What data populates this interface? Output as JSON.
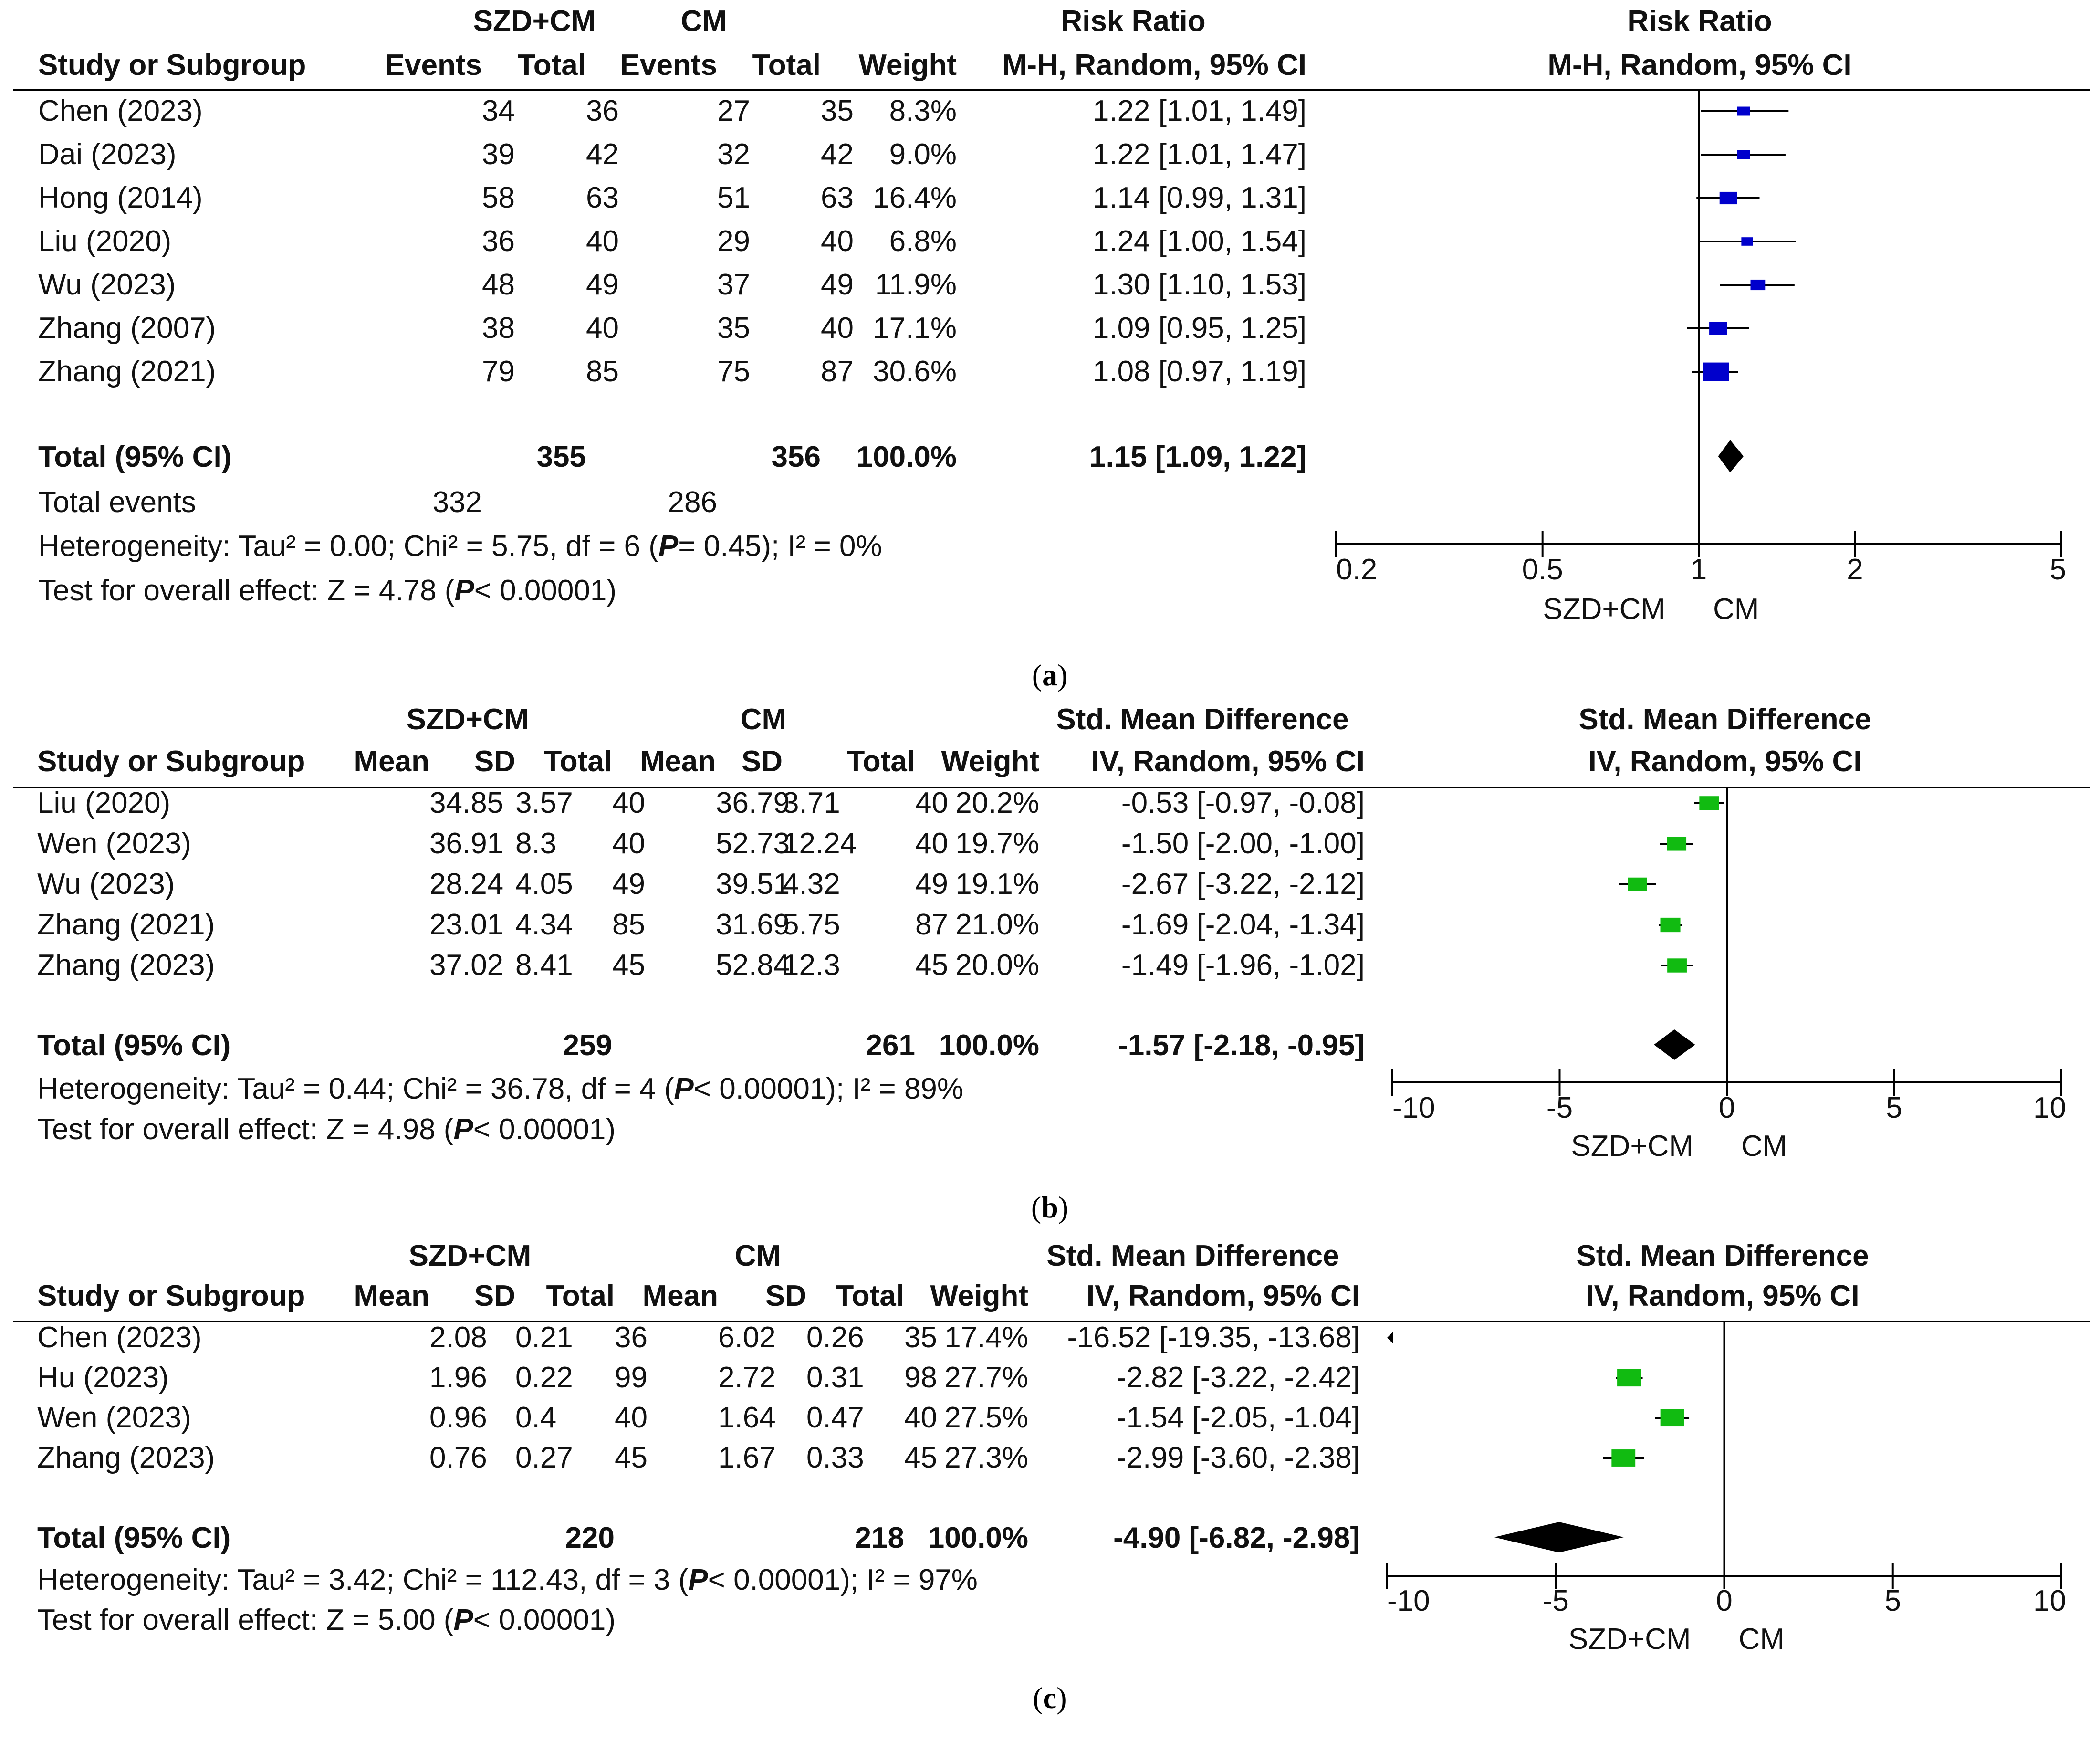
{
  "panels": [
    {
      "id": "a",
      "caption_letter": "a",
      "group_headers": {
        "exp": "SZD+CM",
        "ctl": "CM",
        "stat": "Risk Ratio",
        "plot": "Risk Ratio"
      },
      "columns": {
        "study": "Study or Subgroup",
        "exp": [
          "Events",
          "Total"
        ],
        "ctl": [
          "Events",
          "Total"
        ],
        "weight": "Weight",
        "stat": "M-H, Random, 95% CI",
        "plot": "M-H, Random, 95% CI"
      },
      "rows": [
        {
          "study": "Chen (2023)",
          "exp": [
            "34",
            "36"
          ],
          "ctl": [
            "27",
            "35"
          ],
          "weight": "8.3%",
          "ci_text": "1.22 [1.01, 1.49]"
        },
        {
          "study": "Dai (2023)",
          "exp": [
            "39",
            "42"
          ],
          "ctl": [
            "32",
            "42"
          ],
          "weight": "9.0%",
          "ci_text": "1.22 [1.01, 1.47]"
        },
        {
          "study": "Hong (2014)",
          "exp": [
            "58",
            "63"
          ],
          "ctl": [
            "51",
            "63"
          ],
          "weight": "16.4%",
          "ci_text": "1.14 [0.99, 1.31]"
        },
        {
          "study": "Liu (2020)",
          "exp": [
            "36",
            "40"
          ],
          "ctl": [
            "29",
            "40"
          ],
          "weight": "6.8%",
          "ci_text": "1.24 [1.00, 1.54]"
        },
        {
          "study": "Wu (2023)",
          "exp": [
            "48",
            "49"
          ],
          "ctl": [
            "37",
            "49"
          ],
          "weight": "11.9%",
          "ci_text": "1.30 [1.10, 1.53]"
        },
        {
          "study": "Zhang (2007)",
          "exp": [
            "38",
            "40"
          ],
          "ctl": [
            "35",
            "40"
          ],
          "weight": "17.1%",
          "ci_text": "1.09 [0.95, 1.25]"
        },
        {
          "study": "Zhang (2021)",
          "exp": [
            "79",
            "85"
          ],
          "ctl": [
            "75",
            "87"
          ],
          "weight": "30.6%",
          "ci_text": "1.08 [0.97, 1.19]"
        }
      ],
      "total": {
        "label": "Total (95% CI)",
        "exp": "355",
        "ctl": "356",
        "weight": "100.0%",
        "ci_text": "1.15 [1.09, 1.22]"
      },
      "total_events": {
        "label": "Total events",
        "exp": "332",
        "ctl": "286"
      },
      "heterogeneity": {
        "pre": "Heterogeneity: Tau² = 0.00; Chi² = 5.75, df = 6 (",
        "p": "P",
        "post": "= 0.45); I² = 0%"
      },
      "overall": {
        "pre": "Test for overall effect: Z = 4.78 (",
        "p": "P",
        "post": "< 0.00001)"
      },
      "axis": {
        "ticks": [
          "0.2",
          "0.5",
          "1",
          "2",
          "5"
        ],
        "favours_left": "SZD+CM",
        "favours_right": "CM"
      }
    },
    {
      "id": "b",
      "caption_letter": "b",
      "group_headers": {
        "exp": "SZD+CM",
        "ctl": "CM",
        "stat": "Std. Mean Difference",
        "plot": "Std. Mean Difference"
      },
      "columns": {
        "study": "Study or Subgroup",
        "exp": [
          "Mean",
          "SD",
          "Total"
        ],
        "ctl": [
          "Mean",
          "SD",
          "Total"
        ],
        "weight": "Weight",
        "stat": "IV, Random, 95% CI",
        "plot": "IV, Random, 95% CI"
      },
      "rows": [
        {
          "study": "Liu (2020)",
          "exp": [
            "34.85",
            "3.57",
            "40"
          ],
          "ctl": [
            "36.79",
            "3.71",
            "40"
          ],
          "weight": "20.2%",
          "ci_text": "-0.53 [-0.97, -0.08]"
        },
        {
          "study": "Wen (2023)",
          "exp": [
            "36.91",
            "8.3",
            "40"
          ],
          "ctl": [
            "52.73",
            "12.24",
            "40"
          ],
          "weight": "19.7%",
          "ci_text": "-1.50 [-2.00, -1.00]"
        },
        {
          "study": "Wu (2023)",
          "exp": [
            "28.24",
            "4.05",
            "49"
          ],
          "ctl": [
            "39.51",
            "4.32",
            "49"
          ],
          "weight": "19.1%",
          "ci_text": "-2.67 [-3.22, -2.12]"
        },
        {
          "study": "Zhang (2021)",
          "exp": [
            "23.01",
            "4.34",
            "85"
          ],
          "ctl": [
            "31.69",
            "5.75",
            "87"
          ],
          "weight": "21.0%",
          "ci_text": "-1.69 [-2.04, -1.34]"
        },
        {
          "study": "Zhang (2023)",
          "exp": [
            "37.02",
            "8.41",
            "45"
          ],
          "ctl": [
            "52.84",
            "12.3",
            "45"
          ],
          "weight": "20.0%",
          "ci_text": "-1.49 [-1.96, -1.02]"
        }
      ],
      "total": {
        "label": "Total (95% CI)",
        "exp": "259",
        "ctl": "261",
        "weight": "100.0%",
        "ci_text": "-1.57 [-2.18, -0.95]"
      },
      "heterogeneity": {
        "pre": "Heterogeneity: Tau² = 0.44; Chi² = 36.78, df = 4 (",
        "p": "P",
        "post": "< 0.00001); I² = 89%"
      },
      "overall": {
        "pre": "Test for overall effect: Z = 4.98 (",
        "p": "P",
        "post": "< 0.00001)"
      },
      "axis": {
        "ticks": [
          "-10",
          "-5",
          "0",
          "5",
          "10"
        ],
        "favours_left": "SZD+CM",
        "favours_right": "CM"
      }
    },
    {
      "id": "c",
      "caption_letter": "c",
      "group_headers": {
        "exp": "SZD+CM",
        "ctl": "CM",
        "stat": "Std. Mean Difference",
        "plot": "Std. Mean Difference"
      },
      "columns": {
        "study": "Study or Subgroup",
        "exp": [
          "Mean",
          "SD",
          "Total"
        ],
        "ctl": [
          "Mean",
          "SD",
          "Total"
        ],
        "weight": "Weight",
        "stat": "IV, Random, 95% CI",
        "plot": "IV, Random, 95% CI"
      },
      "rows": [
        {
          "study": "Chen (2023)",
          "exp": [
            "2.08",
            "0.21",
            "36"
          ],
          "ctl": [
            "6.02",
            "0.26",
            "35"
          ],
          "weight": "17.4%",
          "ci_text": "-16.52 [-19.35, -13.68]"
        },
        {
          "study": "Hu (2023)",
          "exp": [
            "1.96",
            "0.22",
            "99"
          ],
          "ctl": [
            "2.72",
            "0.31",
            "98"
          ],
          "weight": "27.7%",
          "ci_text": "-2.82 [-3.22, -2.42]"
        },
        {
          "study": "Wen (2023)",
          "exp": [
            "0.96",
            "0.4",
            "40"
          ],
          "ctl": [
            "1.64",
            "0.47",
            "40"
          ],
          "weight": "27.5%",
          "ci_text": "-1.54 [-2.05, -1.04]"
        },
        {
          "study": "Zhang (2023)",
          "exp": [
            "0.76",
            "0.27",
            "45"
          ],
          "ctl": [
            "1.67",
            "0.33",
            "45"
          ],
          "weight": "27.3%",
          "ci_text": "-2.99 [-3.60, -2.38]"
        }
      ],
      "total": {
        "label": "Total (95% CI)",
        "exp": "220",
        "ctl": "218",
        "weight": "100.0%",
        "ci_text": "-4.90 [-6.82, -2.98]"
      },
      "heterogeneity": {
        "pre": "Heterogeneity: Tau² = 3.42; Chi² = 112.43, df = 3 (",
        "p": "P",
        "post": "< 0.00001); I² = 97%"
      },
      "overall": {
        "pre": "Test for overall effect: Z = 5.00 (",
        "p": "P",
        "post": "< 0.00001)"
      },
      "axis": {
        "ticks": [
          "-10",
          "-5",
          "0",
          "5",
          "10"
        ],
        "favours_left": "SZD+CM",
        "favours_right": "CM"
      }
    }
  ],
  "chart_data": [
    {
      "type": "forest",
      "measure": "Risk Ratio",
      "scale": "log",
      "xlim": [
        0.2,
        5
      ],
      "null_value": 1,
      "marker_color": "#0000cc",
      "studies": [
        {
          "name": "Chen (2023)",
          "est": 1.22,
          "lo": 1.01,
          "hi": 1.49,
          "weight": 8.3
        },
        {
          "name": "Dai (2023)",
          "est": 1.22,
          "lo": 1.01,
          "hi": 1.47,
          "weight": 9.0
        },
        {
          "name": "Hong (2014)",
          "est": 1.14,
          "lo": 0.99,
          "hi": 1.31,
          "weight": 16.4
        },
        {
          "name": "Liu (2020)",
          "est": 1.24,
          "lo": 1.0,
          "hi": 1.54,
          "weight": 6.8
        },
        {
          "name": "Wu (2023)",
          "est": 1.3,
          "lo": 1.1,
          "hi": 1.53,
          "weight": 11.9
        },
        {
          "name": "Zhang (2007)",
          "est": 1.09,
          "lo": 0.95,
          "hi": 1.25,
          "weight": 17.1
        },
        {
          "name": "Zhang (2021)",
          "est": 1.08,
          "lo": 0.97,
          "hi": 1.19,
          "weight": 30.6
        }
      ],
      "pooled": {
        "est": 1.15,
        "lo": 1.09,
        "hi": 1.22
      }
    },
    {
      "type": "forest",
      "measure": "Std. Mean Difference",
      "scale": "linear",
      "xlim": [
        -10,
        10
      ],
      "null_value": 0,
      "marker_color": "#11bb11",
      "studies": [
        {
          "name": "Liu (2020)",
          "est": -0.53,
          "lo": -0.97,
          "hi": -0.08,
          "weight": 20.2
        },
        {
          "name": "Wen (2023)",
          "est": -1.5,
          "lo": -2.0,
          "hi": -1.0,
          "weight": 19.7
        },
        {
          "name": "Wu (2023)",
          "est": -2.67,
          "lo": -3.22,
          "hi": -2.12,
          "weight": 19.1
        },
        {
          "name": "Zhang (2021)",
          "est": -1.69,
          "lo": -2.04,
          "hi": -1.34,
          "weight": 21.0
        },
        {
          "name": "Zhang (2023)",
          "est": -1.49,
          "lo": -1.96,
          "hi": -1.02,
          "weight": 20.0
        }
      ],
      "pooled": {
        "est": -1.57,
        "lo": -2.18,
        "hi": -0.95
      }
    },
    {
      "type": "forest",
      "measure": "Std. Mean Difference",
      "scale": "linear",
      "xlim": [
        -10,
        10
      ],
      "null_value": 0,
      "marker_color": "#11bb11",
      "studies": [
        {
          "name": "Chen (2023)",
          "est": -16.52,
          "lo": -19.35,
          "hi": -13.68,
          "weight": 17.4
        },
        {
          "name": "Hu (2023)",
          "est": -2.82,
          "lo": -3.22,
          "hi": -2.42,
          "weight": 27.7
        },
        {
          "name": "Wen (2023)",
          "est": -1.54,
          "lo": -2.05,
          "hi": -1.04,
          "weight": 27.5
        },
        {
          "name": "Zhang (2023)",
          "est": -2.99,
          "lo": -3.6,
          "hi": -2.38,
          "weight": 27.3
        }
      ],
      "pooled": {
        "est": -4.9,
        "lo": -6.82,
        "hi": -2.98
      }
    }
  ]
}
